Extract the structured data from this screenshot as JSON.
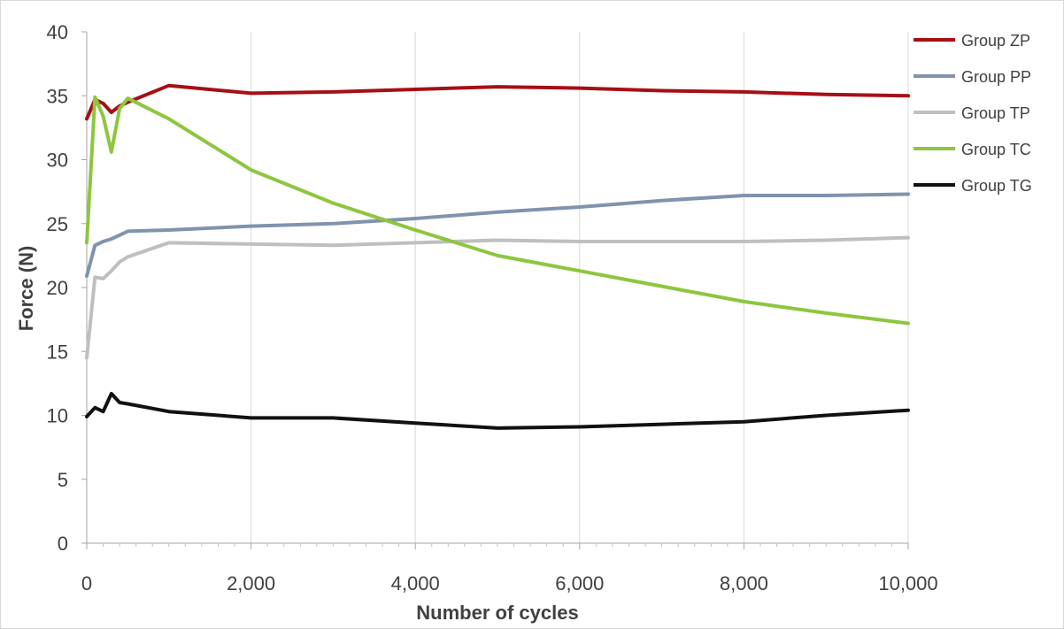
{
  "chart_data": {
    "type": "line",
    "title": "",
    "xlabel": "Number of cycles",
    "ylabel": "Force (N)",
    "xlim": [
      0,
      10000
    ],
    "ylim": [
      0,
      40
    ],
    "x_ticks": [
      0,
      2000,
      4000,
      6000,
      8000,
      10000
    ],
    "x_tick_labels": [
      "0",
      "2,000",
      "4,000",
      "6,000",
      "8,000",
      "10,000"
    ],
    "y_ticks": [
      0,
      5,
      10,
      15,
      20,
      25,
      30,
      35,
      40
    ],
    "y_tick_labels": [
      "0",
      "5",
      "10",
      "15",
      "20",
      "25",
      "30",
      "35",
      "40"
    ],
    "grid": "vertical-major",
    "legend_position": "right",
    "x": [
      0,
      100,
      200,
      300,
      400,
      500,
      1000,
      2000,
      3000,
      4000,
      5000,
      6000,
      7000,
      8000,
      9000,
      10000
    ],
    "series": [
      {
        "name": "Group ZP",
        "color": "#a50f15",
        "values": [
          33.2,
          34.7,
          34.4,
          33.7,
          34.2,
          34.5,
          35.8,
          35.2,
          35.3,
          35.5,
          35.7,
          35.6,
          35.4,
          35.3,
          35.1,
          35.0
        ]
      },
      {
        "name": "Group PP",
        "color": "#7f93ad",
        "values": [
          20.9,
          23.3,
          23.6,
          23.8,
          24.1,
          24.4,
          24.5,
          24.8,
          25.0,
          25.4,
          25.9,
          26.3,
          26.8,
          27.2,
          27.2,
          27.3
        ]
      },
      {
        "name": "Group TP",
        "color": "#bfbfbf",
        "values": [
          14.5,
          20.8,
          20.7,
          21.3,
          22.0,
          22.4,
          23.5,
          23.4,
          23.3,
          23.5,
          23.7,
          23.6,
          23.6,
          23.6,
          23.7,
          23.9
        ]
      },
      {
        "name": "Group TC",
        "color": "#8dc63f",
        "values": [
          23.5,
          34.9,
          33.4,
          30.6,
          34.0,
          34.8,
          33.2,
          29.2,
          26.6,
          24.5,
          22.5,
          21.3,
          20.1,
          18.9,
          18.0,
          17.2
        ]
      },
      {
        "name": "Group TG",
        "color": "#111111",
        "values": [
          9.9,
          10.6,
          10.3,
          11.7,
          11.0,
          10.9,
          10.3,
          9.8,
          9.8,
          9.4,
          9.0,
          9.1,
          9.3,
          9.5,
          10.0,
          10.4
        ]
      }
    ]
  }
}
